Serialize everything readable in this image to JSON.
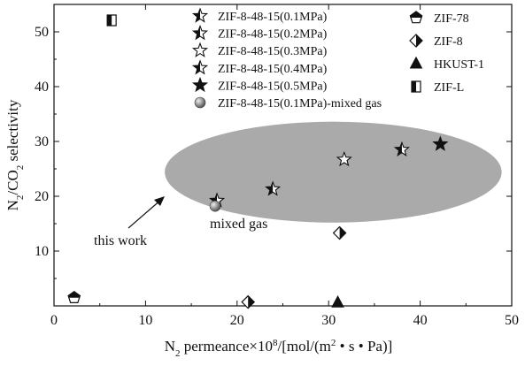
{
  "chart_data": {
    "type": "scatter",
    "title": "",
    "xlabel": {
      "parts": [
        "N",
        "2",
        " permeance×10",
        "8",
        "/[mol/(m",
        "2",
        " • s • Pa)]"
      ]
    },
    "ylabel": {
      "parts": [
        "N",
        "2",
        "/CO",
        "2",
        " selectivity"
      ]
    },
    "xlim": [
      0,
      50
    ],
    "ylim": [
      0,
      55
    ],
    "x_ticks": [
      0,
      10,
      20,
      30,
      40,
      50
    ],
    "y_ticks": [
      10,
      20,
      30,
      40,
      50
    ],
    "grid": false,
    "legend_placement": "top, two columns",
    "series": [
      {
        "name": "ZIF-8-48-15(0.1MPa)",
        "marker": "star-half",
        "points": [
          [
            17.8,
            19.2
          ]
        ]
      },
      {
        "name": "ZIF-8-48-15(0.2MPa)",
        "marker": "star-half",
        "points": [
          [
            23.9,
            21.3
          ]
        ]
      },
      {
        "name": "ZIF-8-48-15(0.3MPa)",
        "marker": "star-open",
        "points": [
          [
            31.7,
            26.7
          ]
        ]
      },
      {
        "name": "ZIF-8-48-15(0.4MPa)",
        "marker": "star-half",
        "points": [
          [
            38.0,
            28.5
          ]
        ]
      },
      {
        "name": "ZIF-8-48-15(0.5MPa)",
        "marker": "star-filled",
        "points": [
          [
            42.2,
            29.5
          ]
        ]
      },
      {
        "name": "ZIF-8-48-15(0.1MPa)-mixed gas",
        "marker": "sphere",
        "points": [
          [
            17.6,
            18.2
          ]
        ]
      },
      {
        "name": "ZIF-78",
        "marker": "pentagon-half",
        "points": [
          [
            2.2,
            1.5
          ]
        ]
      },
      {
        "name": "ZIF-8",
        "marker": "diamond-half",
        "points": [
          [
            21.2,
            0.7
          ],
          [
            31.2,
            13.3
          ]
        ]
      },
      {
        "name": "HKUST-1",
        "marker": "triangle-half",
        "points": [
          [
            31.0,
            0.6
          ]
        ]
      },
      {
        "name": "ZIF-L",
        "marker": "square-half",
        "points": [
          [
            6.3,
            52.1
          ]
        ]
      }
    ],
    "annotations": [
      "this work",
      "mixed gas"
    ],
    "highlight_region": {
      "center": [
        30.5,
        24.4
      ],
      "x_radius": 18.4,
      "y_radius": 9.2,
      "color": "#aaaaaa"
    }
  }
}
